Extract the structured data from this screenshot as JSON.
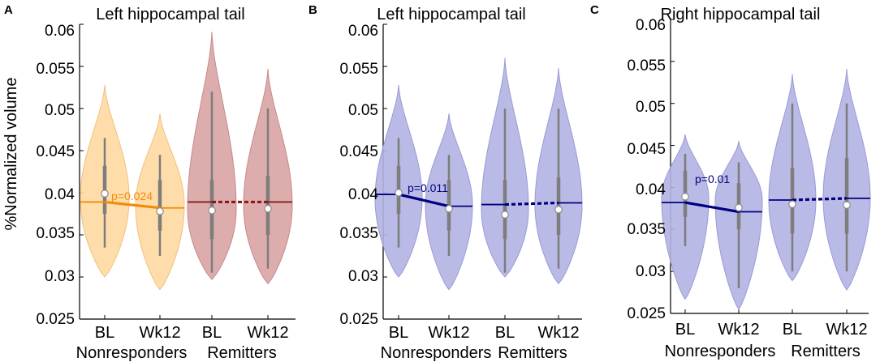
{
  "figure": {
    "y_axis_label": "%Normalized volume"
  },
  "colors": {
    "panelA_nonresponders_fill": "#ffd9a1",
    "panelA_nonresponders_edge": "#f0c07c",
    "panelA_remitters_fill": "#d9a4a4",
    "panelA_remitters_edge": "#c48a8a",
    "panelA_nonresponders_line": "#f28a0a",
    "panelA_remitters_line": "#8b1a1a",
    "panelBC_fill": "#b3b3e3",
    "panelBC_edge": "#9a9ad6",
    "panelBC_line": "#000080"
  },
  "chart_data": [
    {
      "panel_letter": "A",
      "type": "violin",
      "title": "Left hippocampal tail",
      "ylabel": "%Normalized volume",
      "ylim": [
        0.025,
        0.06
      ],
      "yticks": [
        "0.025",
        "0.03",
        "0.035",
        "0.04",
        "0.045",
        "0.05",
        "0.055",
        "0.06"
      ],
      "categories": [
        "BL",
        "Wk12",
        "BL",
        "Wk12"
      ],
      "groups": [
        "Nonresponders",
        "Remitters"
      ],
      "violins": [
        {
          "group": "Nonresponders",
          "timepoint": "BL",
          "min": 0.03,
          "max": 0.0528,
          "q1": 0.0375,
          "q3": 0.0432,
          "whisker_low": 0.0335,
          "whisker_high": 0.0465,
          "median": 0.0399,
          "mean": 0.0389,
          "peak": 0.0393
        },
        {
          "group": "Nonresponders",
          "timepoint": "Wk12",
          "min": 0.0285,
          "max": 0.0494,
          "q1": 0.0355,
          "q3": 0.0415,
          "whisker_low": 0.0325,
          "whisker_high": 0.0445,
          "median": 0.0378,
          "mean": 0.0382,
          "peak": 0.0385
        },
        {
          "group": "Remitters",
          "timepoint": "BL",
          "min": 0.0297,
          "max": 0.0591,
          "q1": 0.0345,
          "q3": 0.0415,
          "whisker_low": 0.0305,
          "whisker_high": 0.052,
          "median": 0.0379,
          "mean": 0.0389,
          "peak": 0.038
        },
        {
          "group": "Remitters",
          "timepoint": "Wk12",
          "min": 0.0292,
          "max": 0.0547,
          "q1": 0.035,
          "q3": 0.042,
          "whisker_low": 0.031,
          "whisker_high": 0.05,
          "median": 0.0381,
          "mean": 0.0389,
          "peak": 0.0385
        }
      ],
      "annotation": "p=0.024",
      "trend_style": [
        "solid",
        "dashed"
      ]
    },
    {
      "panel_letter": "B",
      "type": "violin",
      "title": "Left hippocampal tail",
      "ylabel": "",
      "ylim": [
        0.025,
        0.06
      ],
      "yticks": [
        "0.025",
        "0.03",
        "0.035",
        "0.04",
        "0.045",
        "0.05",
        "0.055",
        "0.06"
      ],
      "categories": [
        "BL",
        "Wk12",
        "BL",
        "Wk12"
      ],
      "groups": [
        "Nonresponders",
        "Remitters"
      ],
      "violins": [
        {
          "group": "Nonresponders",
          "timepoint": "BL",
          "min": 0.03,
          "max": 0.0528,
          "q1": 0.0375,
          "q3": 0.0432,
          "whisker_low": 0.0335,
          "whisker_high": 0.0465,
          "median": 0.04,
          "mean": 0.0398,
          "peak": 0.0393
        },
        {
          "group": "Nonresponders",
          "timepoint": "Wk12",
          "min": 0.0285,
          "max": 0.0494,
          "q1": 0.0355,
          "q3": 0.0415,
          "whisker_low": 0.0325,
          "whisker_high": 0.0445,
          "median": 0.0381,
          "mean": 0.0384,
          "peak": 0.0385
        },
        {
          "group": "Remitters",
          "timepoint": "BL",
          "min": 0.03,
          "max": 0.056,
          "q1": 0.0345,
          "q3": 0.0415,
          "whisker_low": 0.0305,
          "whisker_high": 0.05,
          "median": 0.0374,
          "mean": 0.0386,
          "peak": 0.038
        },
        {
          "group": "Remitters",
          "timepoint": "Wk12",
          "min": 0.0292,
          "max": 0.0548,
          "q1": 0.035,
          "q3": 0.0418,
          "whisker_low": 0.031,
          "whisker_high": 0.05,
          "median": 0.038,
          "mean": 0.0388,
          "peak": 0.0385
        }
      ],
      "annotation": "p=0.011",
      "trend_style": [
        "solid",
        "dashed"
      ]
    },
    {
      "panel_letter": "C",
      "type": "violin",
      "title": "Right hippocampal tail",
      "ylabel": "",
      "ylim": [
        0.025,
        0.06
      ],
      "yticks": [
        "0.025",
        "0.03",
        "0.035",
        "0.04",
        "0.045",
        "0.05",
        "0.055",
        "0.06"
      ],
      "categories": [
        "BL",
        "Wk12",
        "BL",
        "Wk12"
      ],
      "groups": [
        "Nonresponders",
        "Remitters"
      ],
      "violins": [
        {
          "group": "Nonresponders",
          "timepoint": "BL",
          "min": 0.0267,
          "max": 0.0463,
          "q1": 0.0365,
          "q3": 0.042,
          "whisker_low": 0.033,
          "whisker_high": 0.044,
          "median": 0.0389,
          "mean": 0.0382,
          "peak": 0.0388
        },
        {
          "group": "Nonresponders",
          "timepoint": "Wk12",
          "min": 0.0255,
          "max": 0.0455,
          "q1": 0.035,
          "q3": 0.0405,
          "whisker_low": 0.028,
          "whisker_high": 0.043,
          "median": 0.0376,
          "mean": 0.0371,
          "peak": 0.0385
        },
        {
          "group": "Remitters",
          "timepoint": "BL",
          "min": 0.0289,
          "max": 0.0535,
          "q1": 0.0345,
          "q3": 0.0423,
          "whisker_low": 0.03,
          "whisker_high": 0.05,
          "median": 0.038,
          "mean": 0.0385,
          "peak": 0.0385
        },
        {
          "group": "Remitters",
          "timepoint": "Wk12",
          "min": 0.0278,
          "max": 0.0541,
          "q1": 0.0345,
          "q3": 0.0435,
          "whisker_low": 0.03,
          "whisker_high": 0.05,
          "median": 0.0379,
          "mean": 0.0387,
          "peak": 0.0388
        }
      ],
      "annotation": "p=0.01",
      "trend_style": [
        "solid",
        "dashed"
      ]
    }
  ]
}
